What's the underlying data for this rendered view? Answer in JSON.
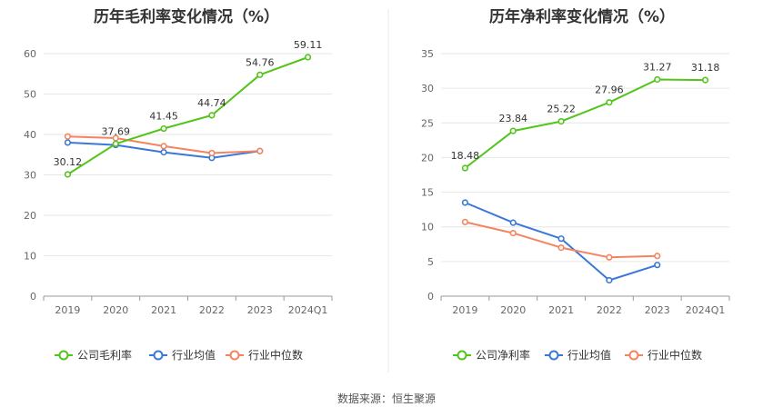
{
  "footer": {
    "source": "数据来源：恒生聚源"
  },
  "chart_data": [
    {
      "type": "line",
      "title": "历年毛利率变化情况（%）",
      "categories": [
        "2019",
        "2020",
        "2021",
        "2022",
        "2023",
        "2024Q1"
      ],
      "yticks": [
        "0",
        "10",
        "20",
        "30",
        "40",
        "50",
        "60"
      ],
      "ylim": [
        0,
        60
      ],
      "grid": true,
      "legend_position": "bottom",
      "series": [
        {
          "name": "公司毛利率",
          "color": "#52c41a",
          "labeled": true,
          "values": [
            30.12,
            37.69,
            41.45,
            44.74,
            54.76,
            59.11
          ],
          "labels": [
            "30.12",
            "37.69",
            "41.45",
            "44.74",
            "54.76",
            "59.11"
          ]
        },
        {
          "name": "行业均值",
          "color": "#3a78d8",
          "labeled": false,
          "values": [
            38.0,
            37.4,
            35.6,
            34.2,
            35.9,
            null
          ]
        },
        {
          "name": "行业中位数",
          "color": "#f4845f",
          "labeled": false,
          "values": [
            39.5,
            39.1,
            37.1,
            35.4,
            35.9,
            null
          ]
        }
      ]
    },
    {
      "type": "line",
      "title": "历年净利率变化情况（%）",
      "categories": [
        "2019",
        "2020",
        "2021",
        "2022",
        "2023",
        "2024Q1"
      ],
      "yticks": [
        "0",
        "5",
        "10",
        "15",
        "20",
        "25",
        "30",
        "35"
      ],
      "ylim": [
        0,
        35
      ],
      "grid": true,
      "legend_position": "bottom",
      "series": [
        {
          "name": "公司净利率",
          "color": "#52c41a",
          "labeled": true,
          "values": [
            18.48,
            23.84,
            25.22,
            27.96,
            31.27,
            31.18
          ],
          "labels": [
            "18.48",
            "23.84",
            "25.22",
            "27.96",
            "31.27",
            "31.18"
          ]
        },
        {
          "name": "行业均值",
          "color": "#3a78d8",
          "labeled": false,
          "values": [
            13.5,
            10.6,
            8.3,
            2.3,
            4.5,
            null
          ]
        },
        {
          "name": "行业中位数",
          "color": "#f4845f",
          "labeled": false,
          "values": [
            10.7,
            9.1,
            7.0,
            5.6,
            5.8,
            null
          ]
        }
      ]
    }
  ]
}
